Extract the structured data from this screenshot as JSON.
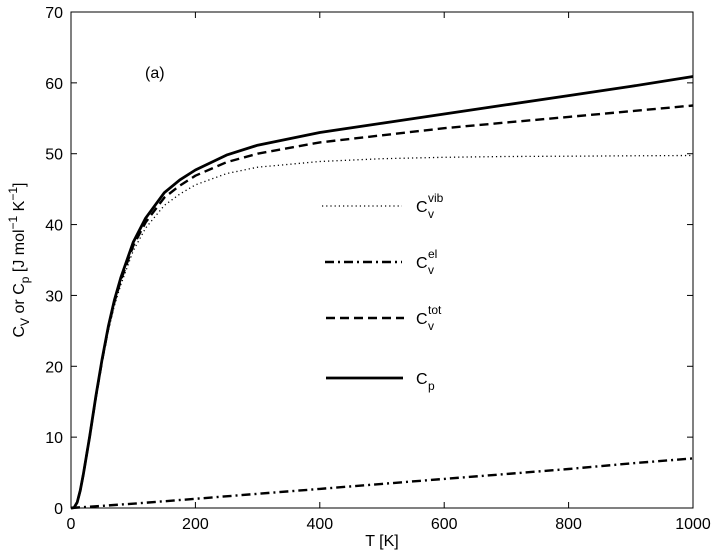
{
  "chart_data": {
    "type": "line",
    "title": "",
    "annotation": "(a)",
    "xlabel": "T [K]",
    "ylabel": {
      "prefix_main": "C",
      "prefix_sub": "V",
      "middle": " or C",
      "middle_sub": "p",
      "unit_main": " [J mol",
      "unit_sup1": "−1",
      "unit_k": " K",
      "unit_sup2": "−1",
      "unit_close": "]"
    },
    "xlim": [
      0,
      1000
    ],
    "ylim": [
      0,
      70
    ],
    "xticks": [
      0,
      200,
      400,
      600,
      800,
      1000
    ],
    "yticks": [
      0,
      10,
      20,
      30,
      40,
      50,
      60,
      70
    ],
    "grid": false,
    "legend_position": "center",
    "series": [
      {
        "legend_main": "C",
        "legend_sub": "v",
        "legend_sup": "vib",
        "line_style": "dotted",
        "color": "#000000",
        "x": [
          0,
          5,
          10,
          15,
          20,
          30,
          40,
          50,
          60,
          70,
          80,
          100,
          120,
          150,
          175,
          200,
          250,
          300,
          400,
          500,
          600,
          700,
          800,
          900,
          1000
        ],
        "y": [
          0,
          0.05,
          0.8,
          2.5,
          4.8,
          10.0,
          15.5,
          20.5,
          25.0,
          28.6,
          31.5,
          36.3,
          39.5,
          42.7,
          44.3,
          45.6,
          47.2,
          48.1,
          48.9,
          49.3,
          49.5,
          49.6,
          49.65,
          49.7,
          49.75
        ]
      },
      {
        "legend_main": "C",
        "legend_sub": "v",
        "legend_sup": "el",
        "line_style": "dashdot",
        "color": "#000000",
        "x": [
          0,
          100,
          200,
          300,
          400,
          500,
          600,
          700,
          800,
          900,
          1000
        ],
        "y": [
          0,
          0.6,
          1.3,
          2.0,
          2.7,
          3.4,
          4.1,
          4.8,
          5.5,
          6.3,
          7.0
        ]
      },
      {
        "legend_main": "C",
        "legend_sub": "v",
        "legend_sup": "tot",
        "line_style": "dashed",
        "color": "#000000",
        "x": [
          0,
          5,
          10,
          15,
          20,
          30,
          40,
          50,
          60,
          70,
          80,
          100,
          120,
          150,
          175,
          200,
          250,
          300,
          400,
          500,
          600,
          700,
          800,
          900,
          1000
        ],
        "y": [
          0,
          0.05,
          0.8,
          2.5,
          4.8,
          10.1,
          15.7,
          20.8,
          25.4,
          29.1,
          32.1,
          37.0,
          40.3,
          43.8,
          45.5,
          46.9,
          48.8,
          50.0,
          51.6,
          52.6,
          53.6,
          54.4,
          55.2,
          56.0,
          56.8
        ]
      },
      {
        "legend_main": "C",
        "legend_sub": "p",
        "legend_sup": "",
        "line_style": "solid",
        "color": "#000000",
        "x": [
          0,
          5,
          10,
          15,
          20,
          30,
          40,
          50,
          60,
          70,
          80,
          100,
          120,
          150,
          175,
          200,
          250,
          300,
          400,
          500,
          600,
          700,
          800,
          900,
          1000
        ],
        "y": [
          0,
          0.05,
          0.8,
          2.5,
          4.8,
          10.1,
          15.8,
          21.0,
          25.6,
          29.4,
          32.5,
          37.5,
          40.9,
          44.5,
          46.3,
          47.7,
          49.8,
          51.2,
          53.0,
          54.3,
          55.6,
          56.9,
          58.2,
          59.5,
          60.9
        ]
      }
    ]
  }
}
